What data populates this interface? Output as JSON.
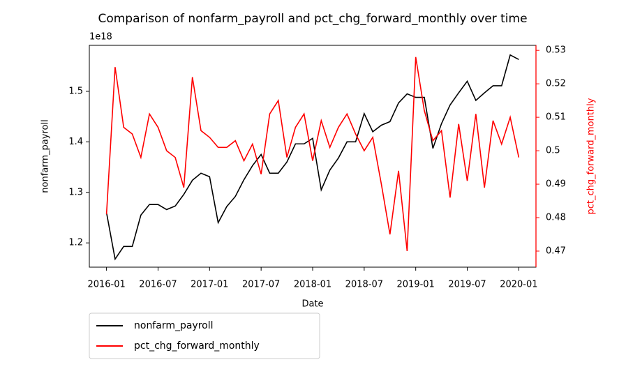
{
  "chart_data": {
    "type": "line",
    "title": "Comparison of nonfarm_payroll and pct_chg_forward_monthly over time",
    "x_label": "Date",
    "y_label": "nonfarm_payroll",
    "y2_label": "pct_chg_forward_monthly",
    "y_offset_text": "1e18",
    "x": [
      "2016-01",
      "2016-02",
      "2016-03",
      "2016-04",
      "2016-05",
      "2016-06",
      "2016-07",
      "2016-08",
      "2016-09",
      "2016-10",
      "2016-11",
      "2016-12",
      "2017-01",
      "2017-02",
      "2017-03",
      "2017-04",
      "2017-05",
      "2017-06",
      "2017-07",
      "2017-08",
      "2017-09",
      "2017-10",
      "2017-11",
      "2017-12",
      "2018-01",
      "2018-02",
      "2018-03",
      "2018-04",
      "2018-05",
      "2018-06",
      "2018-07",
      "2018-08",
      "2018-09",
      "2018-10",
      "2018-11",
      "2018-12",
      "2019-01",
      "2019-02",
      "2019-03",
      "2019-04",
      "2019-05",
      "2019-06",
      "2019-07",
      "2019-08",
      "2019-09",
      "2019-10",
      "2019-11",
      "2019-12",
      "2020-01"
    ],
    "series": [
      {
        "name": "nonfarm_payroll",
        "color": "#000000",
        "axis": "y",
        "values": [
          1.26,
          1.168,
          1.193,
          1.193,
          1.255,
          1.276,
          1.276,
          1.266,
          1.273,
          1.296,
          1.324,
          1.338,
          1.331,
          1.24,
          1.272,
          1.292,
          1.325,
          1.353,
          1.375,
          1.338,
          1.338,
          1.36,
          1.396,
          1.396,
          1.407,
          1.305,
          1.344,
          1.368,
          1.4,
          1.4,
          1.456,
          1.42,
          1.433,
          1.44,
          1.477,
          1.495,
          1.488,
          1.488,
          1.387,
          1.436,
          1.473,
          1.497,
          1.52,
          1.482,
          1.497,
          1.511,
          1.511,
          1.572,
          1.563
        ]
      },
      {
        "name": "pct_chg_forward_monthly",
        "color": "#ff0000",
        "axis": "y2",
        "values": [
          0.481,
          0.525,
          0.507,
          0.505,
          0.498,
          0.511,
          0.507,
          0.5,
          0.498,
          0.489,
          0.522,
          0.506,
          0.504,
          0.501,
          0.501,
          0.503,
          0.497,
          0.502,
          0.493,
          0.511,
          0.515,
          0.498,
          0.507,
          0.511,
          0.497,
          0.509,
          0.501,
          0.507,
          0.511,
          0.505,
          0.5,
          0.504,
          0.49,
          0.475,
          0.494,
          0.47,
          0.528,
          0.512,
          0.503,
          0.506,
          0.486,
          0.508,
          0.491,
          0.511,
          0.489,
          0.509,
          0.502,
          0.51,
          0.498
        ]
      }
    ],
    "xlim": [
      "2015-11",
      "2020-03"
    ],
    "xticks": [
      "2016-01",
      "2016-07",
      "2017-01",
      "2017-07",
      "2018-01",
      "2018-07",
      "2019-01",
      "2019-07",
      "2020-01"
    ],
    "ylim": [
      1.152,
      1.591
    ],
    "yticks": [
      1.2,
      1.3,
      1.4,
      1.5
    ],
    "y2lim": [
      0.4652,
      0.5315
    ],
    "y2ticks": [
      0.47,
      0.48,
      0.49,
      0.5,
      0.51,
      0.52,
      0.53
    ],
    "y2_color": "#ff0000",
    "legend": "below"
  }
}
